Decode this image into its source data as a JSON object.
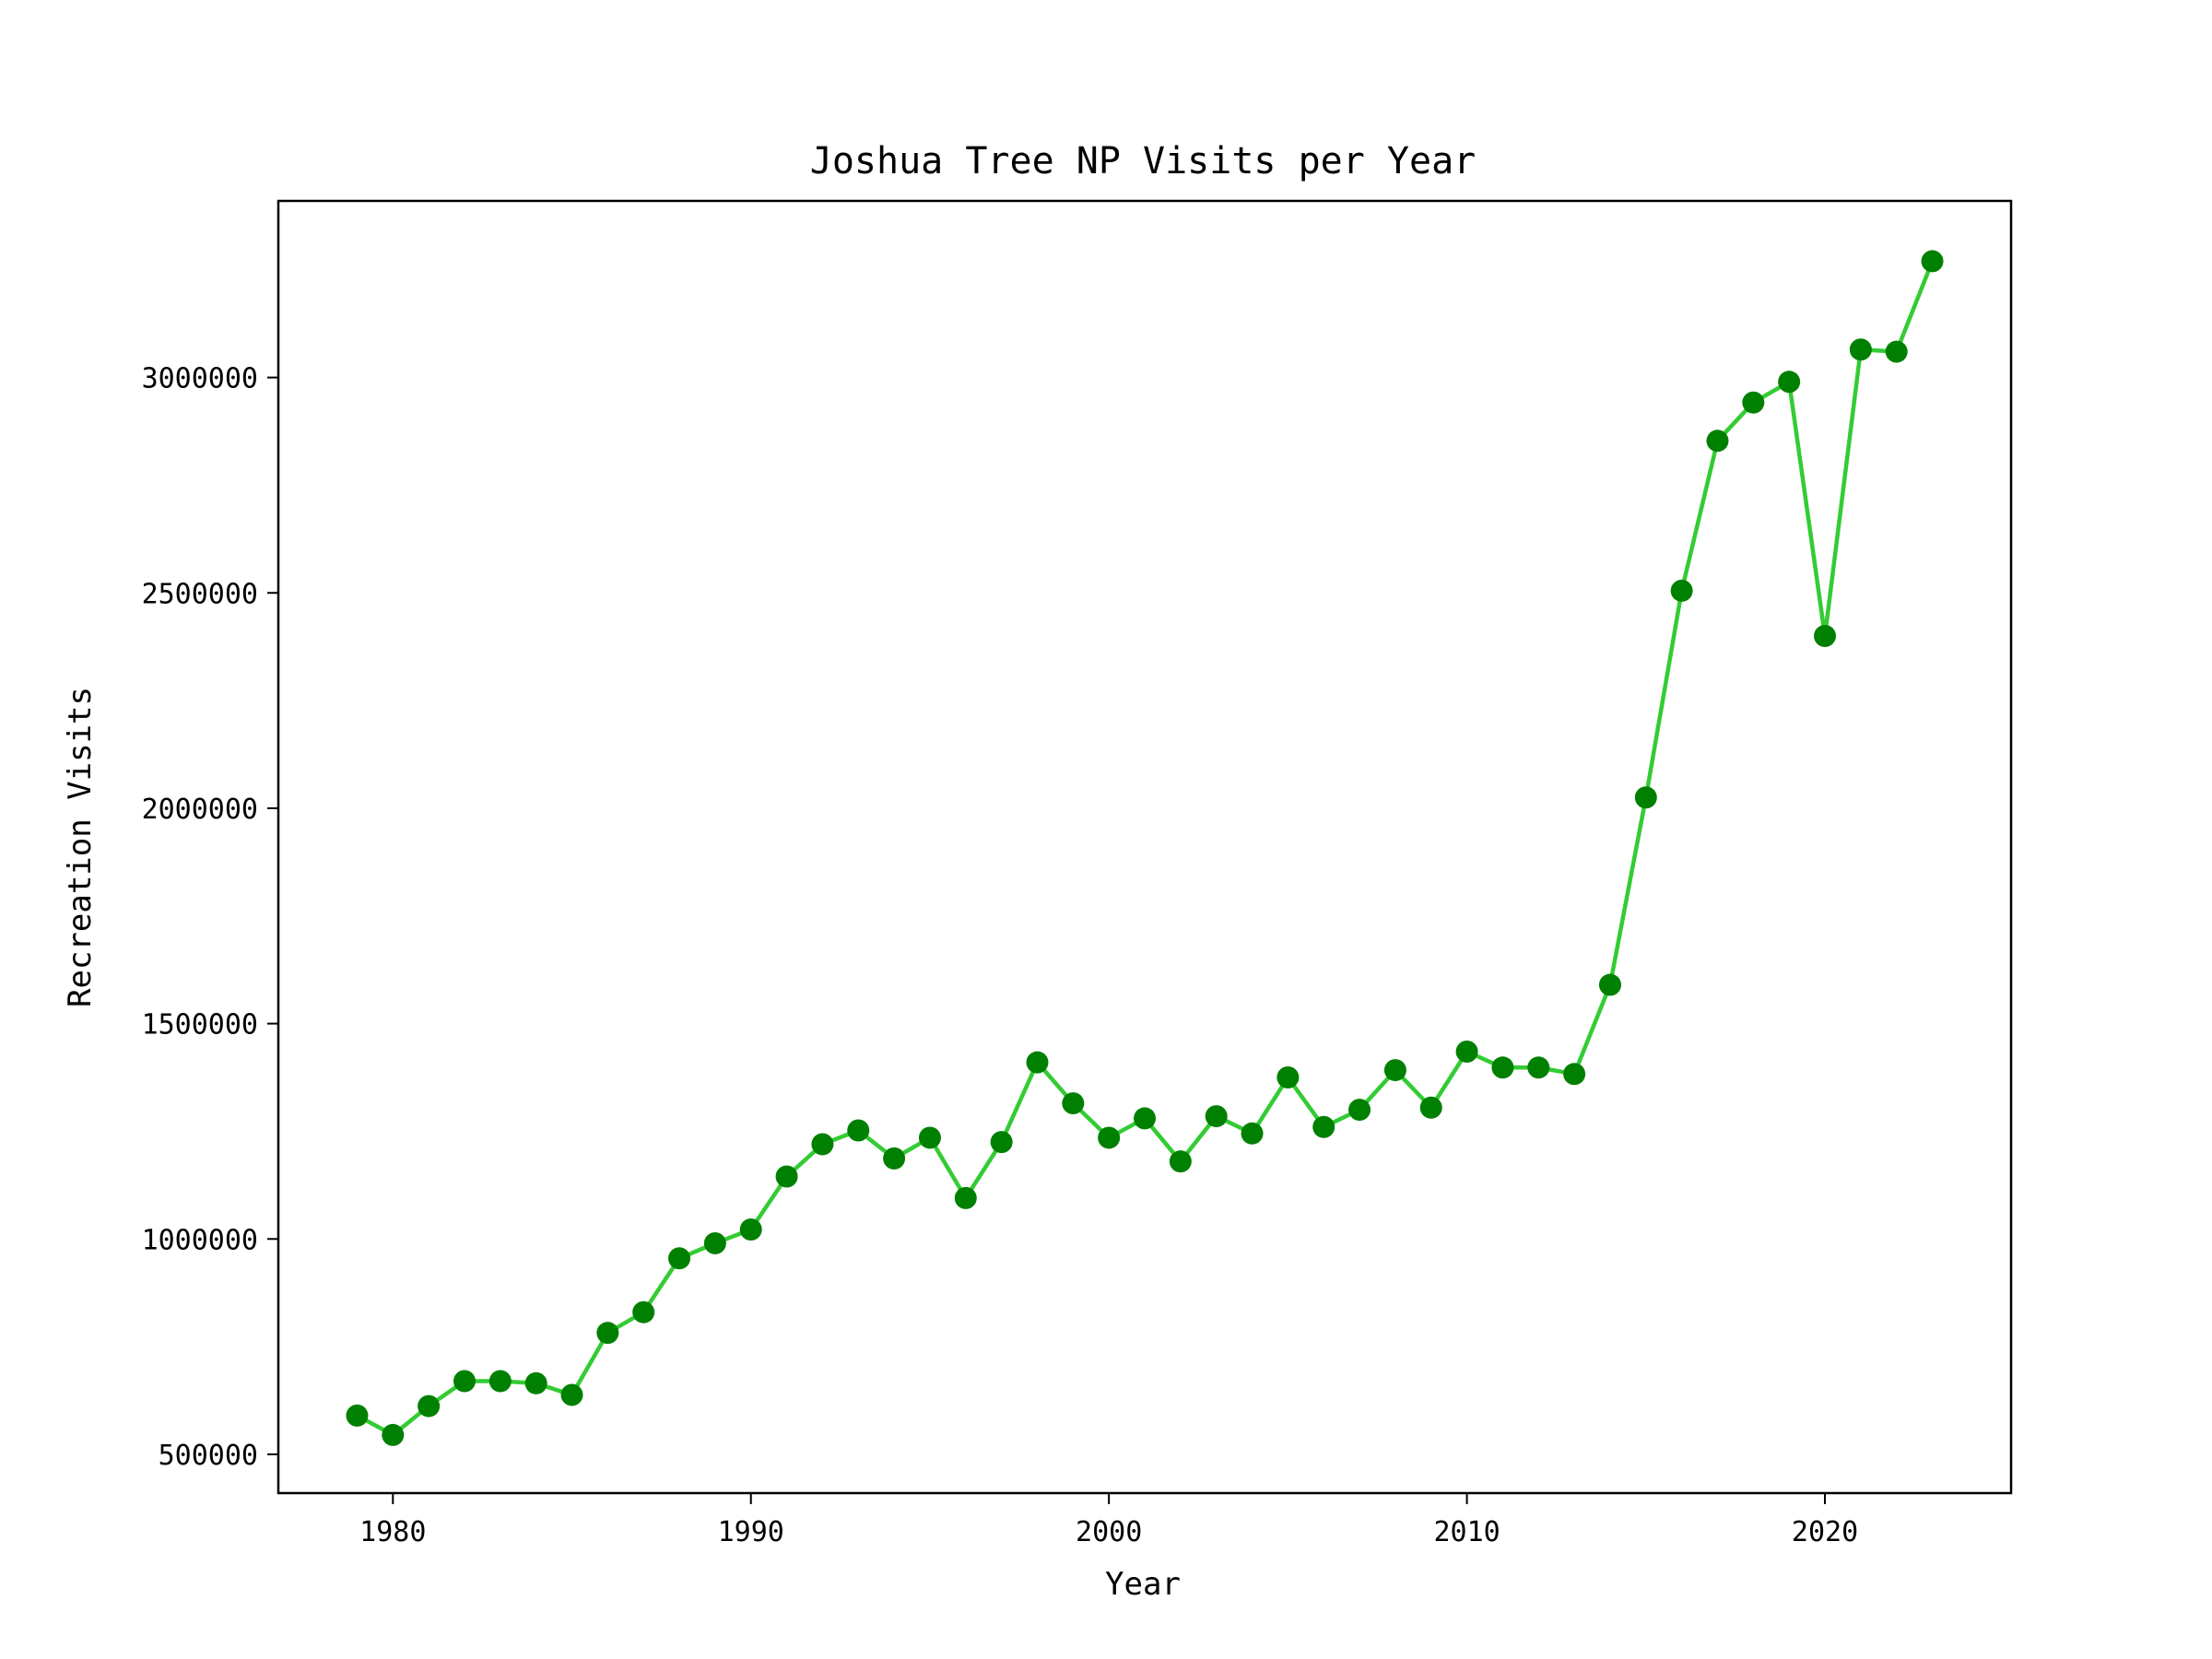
{
  "chart_data": {
    "type": "line",
    "title": "Joshua Tree NP Visits per Year",
    "xlabel": "Year",
    "ylabel": "Recreation Visits",
    "xlim": [
      1976.8,
      2025.2
    ],
    "ylim": [
      410000,
      3410000
    ],
    "xticks": [
      1980,
      1990,
      2000,
      2010,
      2020
    ],
    "yticks": [
      500000,
      1000000,
      1500000,
      2000000,
      2500000,
      3000000
    ],
    "grid": false,
    "legend": "none",
    "line_color": "#33cc33",
    "marker_color": "#008000",
    "series": [
      {
        "x": [
          1979,
          1980,
          1981,
          1982,
          1983,
          1984,
          1985,
          1986,
          1987,
          1988,
          1989,
          1990,
          1991,
          1992,
          1993,
          1994,
          1995,
          1996,
          1997,
          1998,
          1999,
          2000,
          2001,
          2002,
          2003,
          2004,
          2005,
          2006,
          2007,
          2008,
          2009,
          2010,
          2011,
          2012,
          2013,
          2014,
          2015,
          2016,
          2017,
          2018,
          2019,
          2020,
          2021,
          2022,
          2023
        ],
        "values": [
          590000,
          545000,
          612000,
          670000,
          670000,
          665000,
          638000,
          782000,
          830000,
          955000,
          990000,
          1022000,
          1145000,
          1220000,
          1252000,
          1187000,
          1235000,
          1095000,
          1225000,
          1410000,
          1315000,
          1235000,
          1280000,
          1180000,
          1285000,
          1245000,
          1375000,
          1260000,
          1300000,
          1392000,
          1305000,
          1435000,
          1398000,
          1398000,
          1383000,
          1590000,
          2025000,
          2505000,
          2853000,
          2942000,
          2990000,
          2400000,
          3065000,
          3060000,
          3270000
        ]
      }
    ]
  }
}
